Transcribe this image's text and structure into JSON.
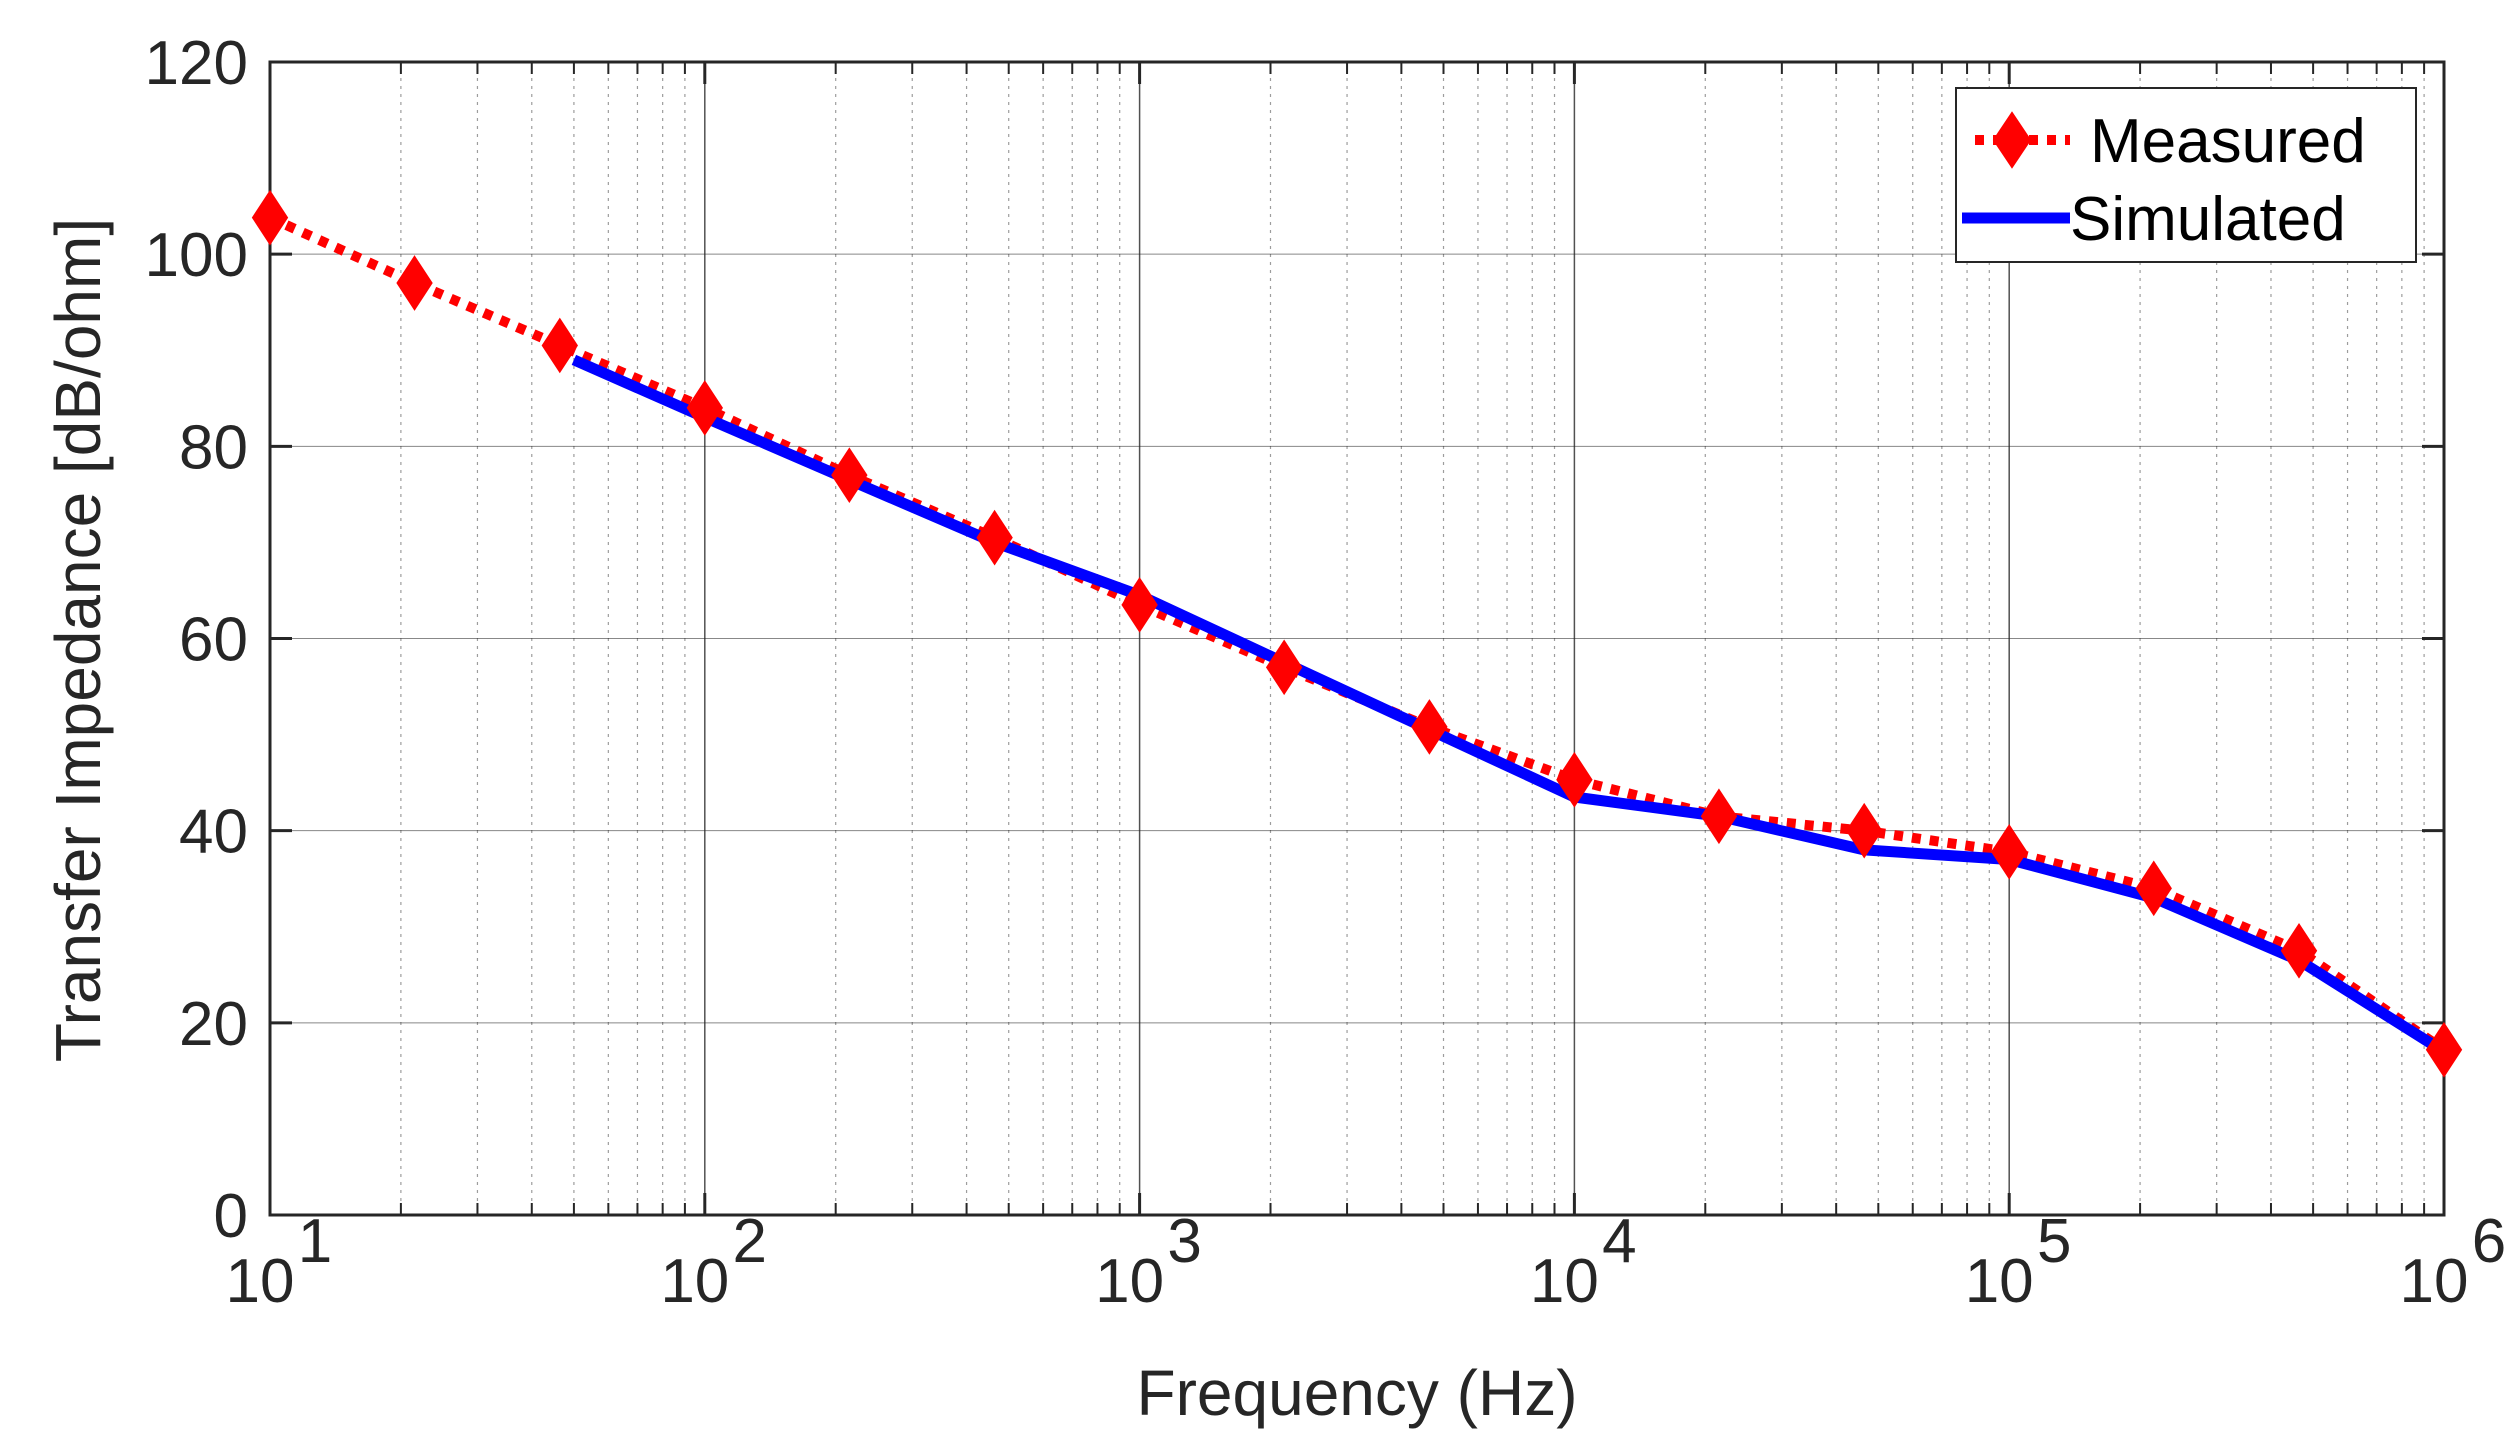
{
  "chart_data": {
    "type": "line",
    "title": "",
    "xlabel": "Frequency (Hz)",
    "ylabel": "Transfer Impedance [dB/ohm]",
    "xscale": "log",
    "xlim": [
      10,
      1000000
    ],
    "ylim": [
      0,
      120
    ],
    "x_ticks": [
      {
        "value": 10,
        "base": "10",
        "exp": "1"
      },
      {
        "value": 100,
        "base": "10",
        "exp": "2"
      },
      {
        "value": 1000,
        "base": "10",
        "exp": "3"
      },
      {
        "value": 10000,
        "base": "10",
        "exp": "4"
      },
      {
        "value": 100000,
        "base": "10",
        "exp": "5"
      },
      {
        "value": 1000000,
        "base": "10",
        "exp": "6"
      }
    ],
    "y_ticks": [
      "0",
      "20",
      "40",
      "60",
      "80",
      "100",
      "120"
    ],
    "grid": true,
    "legend_position": "top-right",
    "series": [
      {
        "name": "Measured",
        "color": "#ff0000",
        "line_style": "dotted",
        "marker": "diamond",
        "x": [
          10,
          21.5,
          46.4,
          100,
          215,
          464,
          1000,
          2150,
          4640,
          10000,
          21500,
          46400,
          100000,
          215000,
          464000,
          1000000
        ],
        "values": [
          103.8,
          97,
          90.5,
          84,
          77,
          70.5,
          63.5,
          57,
          50.8,
          45.3,
          41.5,
          40,
          37.8,
          34,
          27.5,
          17.2
        ]
      },
      {
        "name": "Simulated",
        "color": "#0000ff",
        "line_style": "solid",
        "marker": "none",
        "x": [
          50,
          100,
          215,
          464,
          1000,
          2150,
          4640,
          10000,
          21500,
          46400,
          100000,
          215000,
          464000,
          1000000
        ],
        "values": [
          89,
          83,
          76.5,
          70,
          64.5,
          57.5,
          50.5,
          43.5,
          41.5,
          38,
          37,
          33,
          26.5,
          17
        ]
      }
    ]
  }
}
